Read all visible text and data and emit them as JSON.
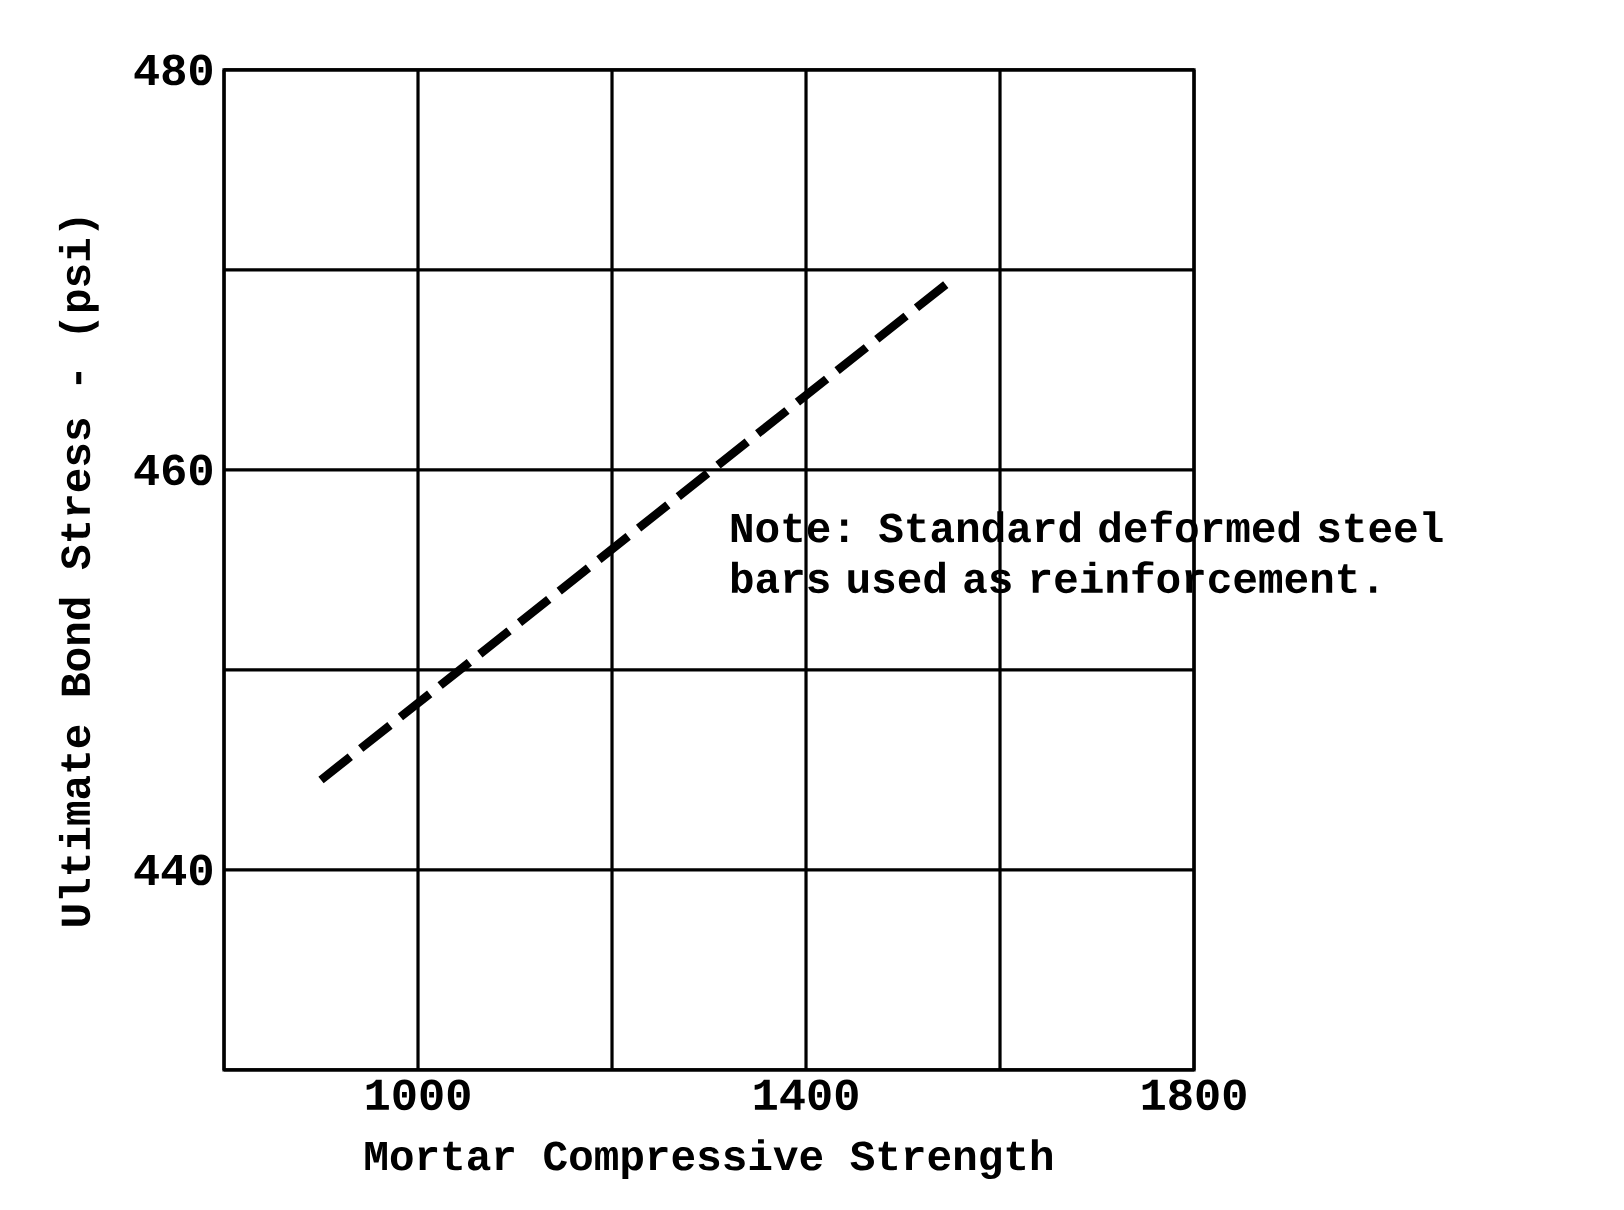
{
  "chart_data": {
    "type": "line",
    "xlabel": "Mortar Compressive Strength",
    "ylabel": "Ultimate Bond Stress  -  (psi)",
    "annotations": [
      "Note:  Standard deformed steel bars used as reinforcement."
    ],
    "x": [
      900,
      1550
    ],
    "series": [
      {
        "color": "#000000",
        "values": [
          444.5,
          469.5
        ],
        "line_style": "dashed"
      }
    ],
    "xlim": [
      800,
      1800
    ],
    "xticks": [
      {
        "value": 800,
        "label": null
      },
      1000,
      {
        "value": 1200,
        "label": null
      },
      1400,
      {
        "value": 1600,
        "label": null
      },
      1800
    ],
    "ylim": [
      430,
      480
    ],
    "yticks": [
      {
        "value": 430,
        "label": null
      },
      440,
      {
        "value": 450,
        "label": null
      },
      460,
      {
        "value": 470,
        "label": null
      },
      480
    ],
    "grid": true
  }
}
